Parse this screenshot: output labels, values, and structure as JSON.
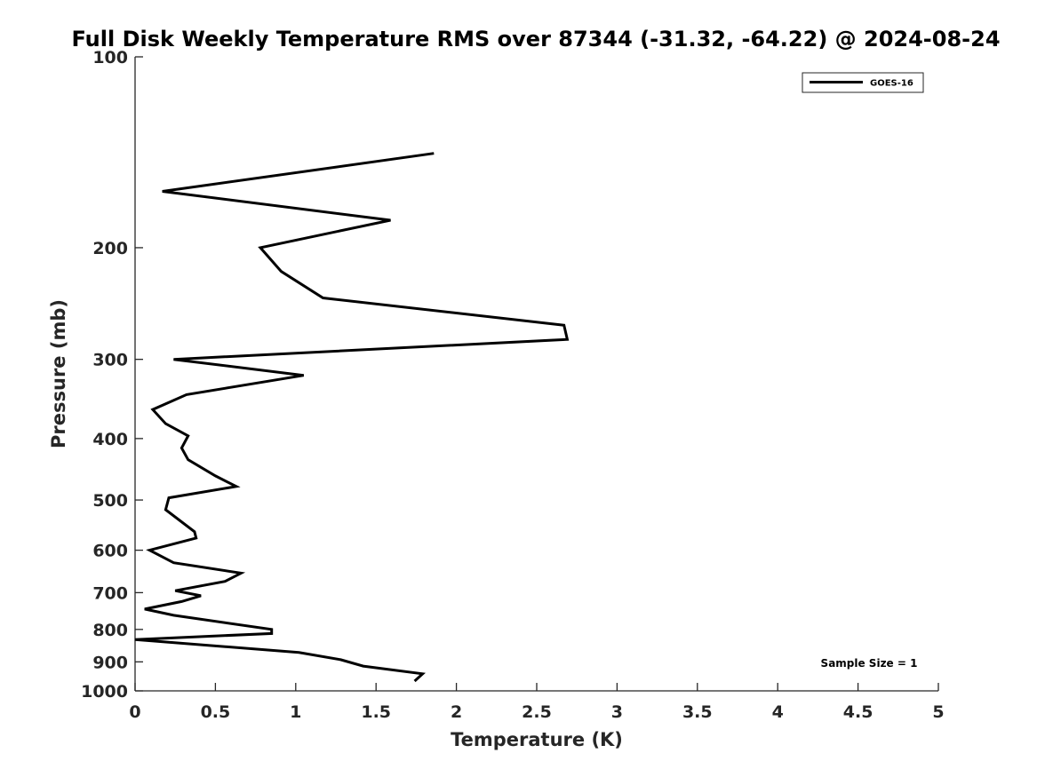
{
  "chart_data": {
    "type": "line",
    "title": "Full Disk Weekly Temperature RMS over 87344 (-31.32, -64.22) @ 2024-08-24",
    "xlabel": "Temperature (K)",
    "ylabel": "Pressure (mb)",
    "xlim": [
      0,
      5
    ],
    "ylim": [
      100,
      1000
    ],
    "y_scale": "log",
    "y_reversed": true,
    "x_ticks": [
      0,
      0.5,
      1,
      1.5,
      2,
      2.5,
      3,
      3.5,
      4,
      4.5,
      5
    ],
    "x_tick_labels": [
      "0",
      "0.5",
      "1",
      "1.5",
      "2",
      "2.5",
      "3",
      "3.5",
      "4",
      "4.5",
      "5"
    ],
    "y_ticks": [
      100,
      200,
      300,
      400,
      500,
      600,
      700,
      800,
      900,
      1000
    ],
    "y_tick_labels": [
      "100",
      "200",
      "300",
      "400",
      "500",
      "600",
      "700",
      "800",
      "900",
      "1000"
    ],
    "grid": false,
    "legend_position": "top-right",
    "series": [
      {
        "name": "GOES-16",
        "color": "#000000",
        "points": [
          {
            "x": 1.86,
            "p": 142
          },
          {
            "x": 0.17,
            "p": 163
          },
          {
            "x": 1.59,
            "p": 181
          },
          {
            "x": 0.78,
            "p": 200
          },
          {
            "x": 0.91,
            "p": 218
          },
          {
            "x": 1.17,
            "p": 240
          },
          {
            "x": 2.67,
            "p": 265
          },
          {
            "x": 2.69,
            "p": 279
          },
          {
            "x": 0.24,
            "p": 300
          },
          {
            "x": 1.05,
            "p": 318
          },
          {
            "x": 0.32,
            "p": 341
          },
          {
            "x": 0.11,
            "p": 360
          },
          {
            "x": 0.19,
            "p": 379
          },
          {
            "x": 0.33,
            "p": 396
          },
          {
            "x": 0.29,
            "p": 414
          },
          {
            "x": 0.33,
            "p": 432
          },
          {
            "x": 0.5,
            "p": 458
          },
          {
            "x": 0.63,
            "p": 476
          },
          {
            "x": 0.21,
            "p": 496
          },
          {
            "x": 0.19,
            "p": 518
          },
          {
            "x": 0.37,
            "p": 561
          },
          {
            "x": 0.38,
            "p": 574
          },
          {
            "x": 0.09,
            "p": 600
          },
          {
            "x": 0.24,
            "p": 628
          },
          {
            "x": 0.66,
            "p": 652
          },
          {
            "x": 0.56,
            "p": 672
          },
          {
            "x": 0.25,
            "p": 695
          },
          {
            "x": 0.41,
            "p": 708
          },
          {
            "x": 0.29,
            "p": 723
          },
          {
            "x": 0.06,
            "p": 743
          },
          {
            "x": 0.24,
            "p": 760
          },
          {
            "x": 0.85,
            "p": 800
          },
          {
            "x": 0.85,
            "p": 812
          },
          {
            "x": 0.0,
            "p": 830
          },
          {
            "x": 1.02,
            "p": 870
          },
          {
            "x": 1.28,
            "p": 893
          },
          {
            "x": 1.42,
            "p": 914
          },
          {
            "x": 1.79,
            "p": 940
          },
          {
            "x": 1.74,
            "p": 965
          }
        ]
      }
    ],
    "annotations": [
      {
        "text": "Sample Size = 1",
        "position": "bottom-right"
      }
    ]
  }
}
